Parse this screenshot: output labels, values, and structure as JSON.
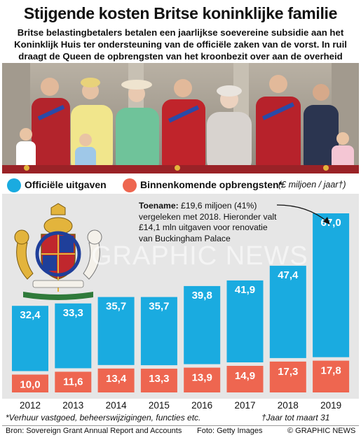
{
  "title": "Stijgende kosten Britse koninklijke familie",
  "subtitle": "Britse belastingbetalers betalen een jaarlijkse soevereine subsidie aan het Koninklijk Huis ter ondersteuning van de officiële zaken van de vorst. In ruil draagt de Queen de opbrengsten van het kroonbezit over aan de overheid",
  "legend": {
    "official": "Officiële uitgaven",
    "income": "Binnenkomende opbrengsten*",
    "unit": "(£ miljoen / jaar†)"
  },
  "annotation": {
    "bold": "Toename:",
    "text": " £19,6 miljoen (41%) vergeleken met 2018. Hieronder valt £14,1 mln uitgaven voor renovatie van Buckingham Palace"
  },
  "footnote_left": "*Verhuur vastgoed, beheerswijzigingen, functies etc.",
  "footnote_right": "†Jaar tot maart 31",
  "source": "Bron: Sovereign Grant Annual Report and Accounts",
  "photo_credit": "Foto: Getty Images",
  "brand": "© GRAPHIC NEWS",
  "watermark": "GRAPHIC NEWS",
  "colors": {
    "official": "#1aabe0",
    "income": "#ee6650",
    "panel": "#e6e6e6"
  },
  "chart_data": {
    "type": "bar",
    "categories": [
      "2012",
      "2013",
      "2014",
      "2015",
      "2016",
      "2017",
      "2018",
      "2019"
    ],
    "series": [
      {
        "name": "Officiële uitgaven",
        "values": [
          32.4,
          33.3,
          35.7,
          35.7,
          39.8,
          41.9,
          47.4,
          67.0
        ],
        "labels": [
          "32,4",
          "33,3",
          "35,7",
          "35,7",
          "39,8",
          "41,9",
          "47,4",
          "67,0"
        ]
      },
      {
        "name": "Binnenkomende opbrengsten*",
        "values": [
          10.0,
          11.6,
          13.4,
          13.3,
          13.9,
          14.9,
          17.3,
          17.8
        ],
        "labels": [
          "10,0",
          "11,6",
          "13,4",
          "13,3",
          "13,9",
          "14,9",
          "17,3",
          "17,8"
        ]
      }
    ],
    "unit": "£ miljoen / jaar",
    "ylim": [
      0,
      67
    ]
  }
}
